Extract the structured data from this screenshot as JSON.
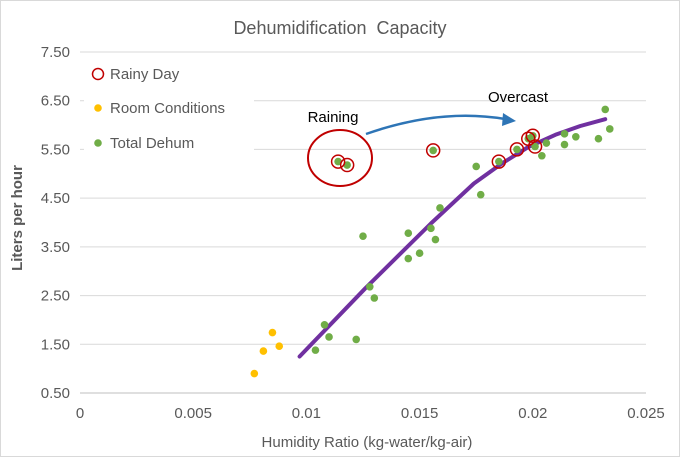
{
  "chart_data": {
    "type": "scatter",
    "title": "Dehumidification  Capacity",
    "xlabel": "Humidity Ratio (kg-water/kg-air)",
    "ylabel": "Liters per hour",
    "xlim": [
      0,
      0.025
    ],
    "ylim": [
      0.5,
      7.5
    ],
    "x_ticks": [
      "0",
      "0.005",
      "0.01",
      "0.015",
      "0.02",
      "0.025"
    ],
    "y_ticks": [
      "0.50",
      "1.50",
      "2.50",
      "3.50",
      "4.50",
      "5.50",
      "6.50",
      "7.50"
    ],
    "grid": "horizontal",
    "legend_position": "top-left",
    "series": [
      {
        "name": "Rainy Day",
        "marker": "open-circle",
        "color": "#c00000",
        "points": [
          [
            0.0114,
            5.25
          ],
          [
            0.0118,
            5.18
          ],
          [
            0.0156,
            5.48
          ],
          [
            0.0185,
            5.25
          ],
          [
            0.0193,
            5.5
          ],
          [
            0.0198,
            5.72
          ],
          [
            0.02,
            5.78
          ],
          [
            0.0201,
            5.56
          ]
        ]
      },
      {
        "name": "Room Conditions",
        "marker": "dot",
        "color": "#ffc000",
        "points": [
          [
            0.0077,
            0.9
          ],
          [
            0.0081,
            1.36
          ],
          [
            0.0085,
            1.74
          ],
          [
            0.0088,
            1.46
          ]
        ]
      },
      {
        "name": "Total Dehum",
        "marker": "dot",
        "color": "#70ad47",
        "points": [
          [
            0.0104,
            1.38
          ],
          [
            0.0108,
            1.9
          ],
          [
            0.011,
            1.65
          ],
          [
            0.0114,
            5.25
          ],
          [
            0.0118,
            5.18
          ],
          [
            0.0122,
            1.6
          ],
          [
            0.0125,
            3.72
          ],
          [
            0.0128,
            2.68
          ],
          [
            0.013,
            2.45
          ],
          [
            0.0145,
            3.78
          ],
          [
            0.0145,
            3.26
          ],
          [
            0.015,
            3.37
          ],
          [
            0.0155,
            3.88
          ],
          [
            0.0156,
            5.48
          ],
          [
            0.0157,
            3.65
          ],
          [
            0.0159,
            4.3
          ],
          [
            0.0175,
            5.15
          ],
          [
            0.0177,
            4.57
          ],
          [
            0.0185,
            5.25
          ],
          [
            0.0193,
            5.5
          ],
          [
            0.0198,
            5.72
          ],
          [
            0.02,
            5.78
          ],
          [
            0.0201,
            5.56
          ],
          [
            0.0204,
            5.37
          ],
          [
            0.0206,
            5.63
          ],
          [
            0.0214,
            5.82
          ],
          [
            0.0214,
            5.6
          ],
          [
            0.0219,
            5.76
          ],
          [
            0.0229,
            5.72
          ],
          [
            0.0232,
            6.32
          ],
          [
            0.0234,
            5.92
          ]
        ]
      }
    ],
    "fit_line": {
      "color": "#7030a0",
      "points": [
        [
          0.0097,
          1.25
        ],
        [
          0.0126,
          2.65
        ],
        [
          0.0155,
          3.98
        ],
        [
          0.0174,
          4.8
        ],
        [
          0.0186,
          5.2
        ],
        [
          0.0198,
          5.55
        ],
        [
          0.021,
          5.8
        ],
        [
          0.0221,
          5.98
        ],
        [
          0.0232,
          6.12
        ]
      ]
    },
    "annotations": {
      "raining": "Raining",
      "overcast": "Overcast"
    },
    "annotation_colors": {
      "ellipse": "#c00000",
      "arrow": "#2e75b6"
    },
    "axis_color": "#595959",
    "gridline_color": "#d9d9d9"
  }
}
